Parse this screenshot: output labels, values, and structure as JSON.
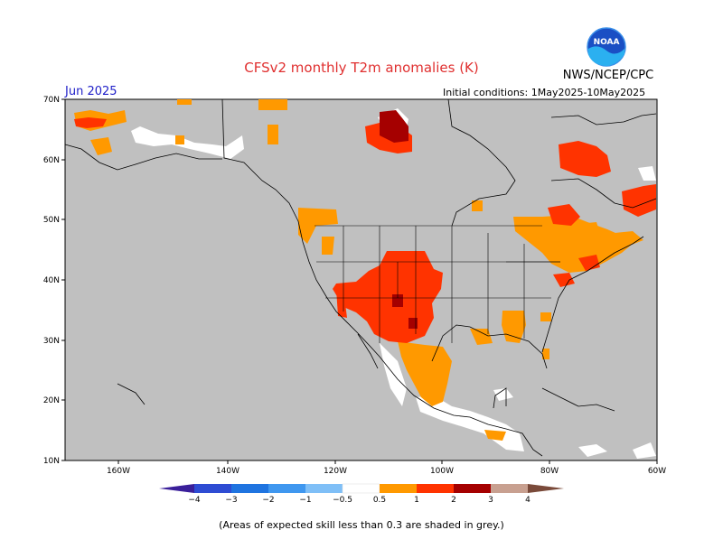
{
  "header": {
    "title": "CFSv2 monthly T2m anomalies (K)",
    "agency": "NWS/NCEP/CPC",
    "valid_month": "Jun 2025",
    "initial_conditions": "Initial conditions: 1May2025-10May2025",
    "logo_text": "NOAA"
  },
  "map": {
    "lat_labels": [
      "70N",
      "60N",
      "50N",
      "40N",
      "30N",
      "20N",
      "10N"
    ],
    "lon_labels": [
      "160W",
      "140W",
      "120W",
      "100W",
      "80W",
      "60W"
    ],
    "colors": {
      "no_skill": "#c0c0c0",
      "neutral": "#ffffff",
      "pos_05_1": "#ff9900",
      "pos_1_2": "#ff3300",
      "pos_2_3": "#a50000",
      "ocean": "#c0c0c0"
    }
  },
  "colorbar": {
    "labels": [
      "−4",
      "−3",
      "−2",
      "−1",
      "−0.5",
      "0.5",
      "1",
      "2",
      "3",
      "4"
    ],
    "colors": [
      "#3a1f9a",
      "#2e4cd3",
      "#1f74e0",
      "#3f97ef",
      "#7fbff7",
      "#ffffff",
      "#ff9900",
      "#ff3300",
      "#a50000",
      "#c8a090",
      "#7a4a3a"
    ]
  },
  "footnote": "(Areas of expected skill less than 0.3 are shaded in grey.)"
}
